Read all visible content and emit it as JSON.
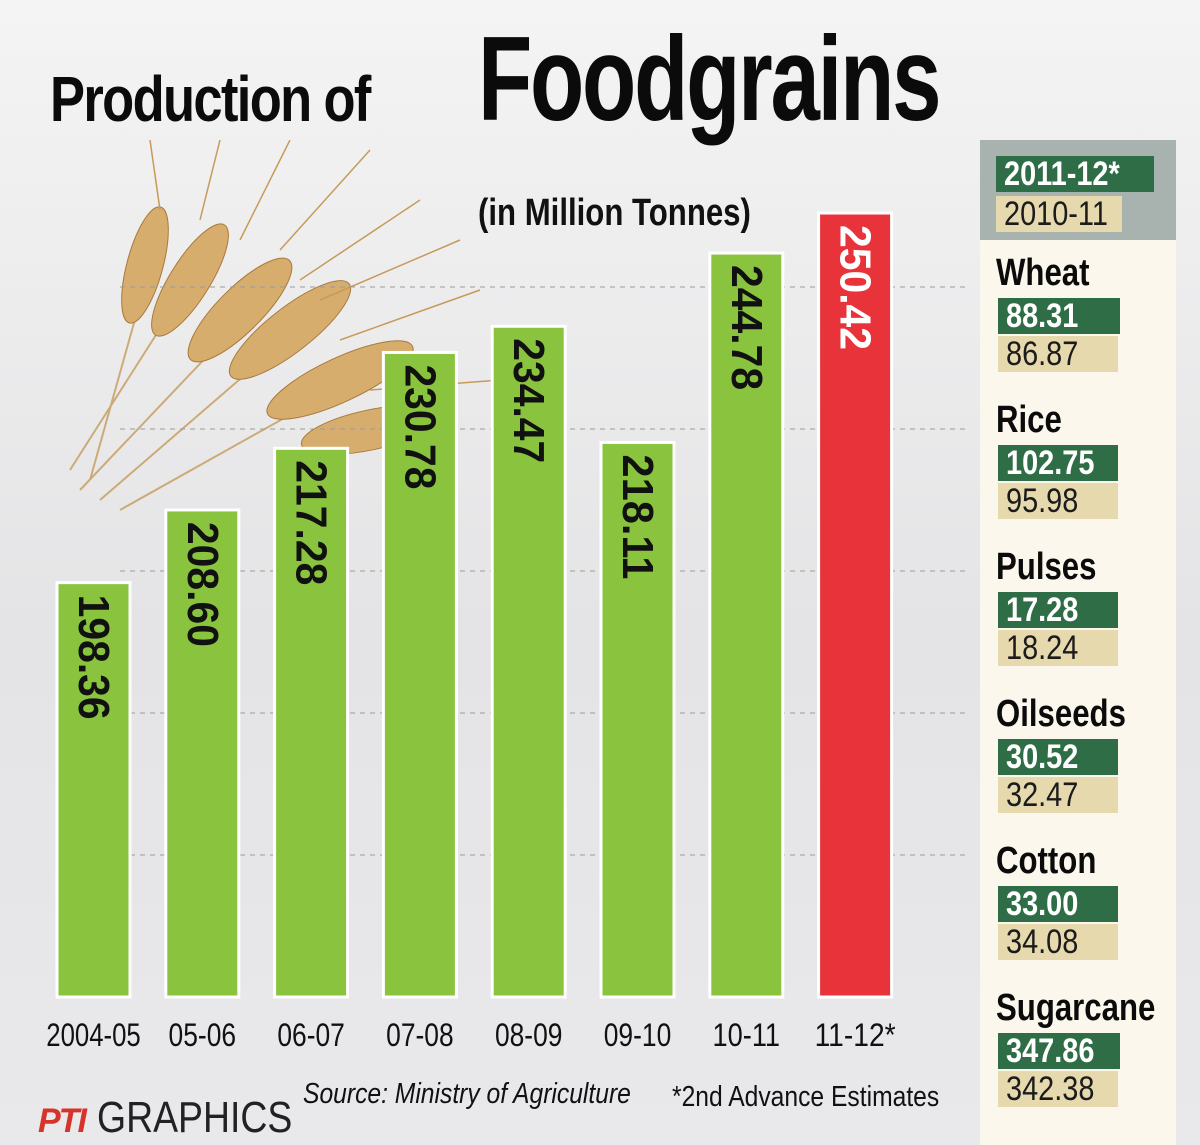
{
  "header": {
    "title_part1": "Production of",
    "title_part2": "Foodgrains",
    "subtitle": "(in Million Tonnes)"
  },
  "chart_data": {
    "type": "bar",
    "title": "Production of Foodgrains",
    "subtitle": "(in Million Tonnes)",
    "categories": [
      "2004-05",
      "05-06",
      "06-07",
      "07-08",
      "08-09",
      "09-10",
      "10-11",
      "11-12*"
    ],
    "values": [
      198.36,
      208.6,
      217.28,
      230.78,
      234.47,
      218.11,
      244.78,
      250.42
    ],
    "value_labels": [
      "198.36",
      "208.60",
      "217.28",
      "230.78",
      "234.47",
      "218.11",
      "244.78",
      "250.42"
    ],
    "highlight_index": 7,
    "colors": {
      "bar": "#8ac43f",
      "highlight": "#e8333a",
      "gridline": "#9a9a9a"
    },
    "grid": true,
    "ylim": [
      140,
      260
    ]
  },
  "sidebar": {
    "legend_current": "2011-12*",
    "legend_previous": "2010-11",
    "items": [
      {
        "name": "Wheat",
        "current": "88.31",
        "previous": "86.87"
      },
      {
        "name": "Rice",
        "current": "102.75",
        "previous": "95.98"
      },
      {
        "name": "Pulses",
        "current": "17.28",
        "previous": "18.24"
      },
      {
        "name": "Oilseeds",
        "current": "30.52",
        "previous": "32.47"
      },
      {
        "name": "Cotton",
        "current": "33.00",
        "previous": "34.08"
      },
      {
        "name": "Sugarcane",
        "current": "347.86",
        "previous": "342.38"
      }
    ],
    "colors": {
      "current": "#2f6d46",
      "previous": "#e6d9ae"
    }
  },
  "footer": {
    "logo_mark": "PTI",
    "logo_text": "GRAPHICS",
    "source": "Source: Ministry of Agriculture",
    "note": "*2nd Advance Estimates"
  }
}
